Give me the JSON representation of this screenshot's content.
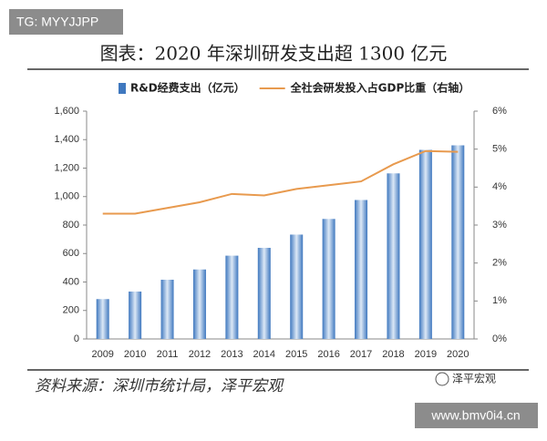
{
  "overlays": {
    "top_watermark": "TG: MYYJJPP",
    "bottom_watermark": "www.bmv0i4.cn",
    "logo": "泽平宏观"
  },
  "chart_data": {
    "type": "bar_line",
    "title": "图表：2020 年深圳研发支出超 1300 亿元",
    "source": "资料来源：深圳市统计局，泽平宏观",
    "categories": [
      "2009",
      "2010",
      "2011",
      "2012",
      "2013",
      "2014",
      "2015",
      "2016",
      "2017",
      "2018",
      "2019",
      "2020"
    ],
    "series": [
      {
        "name": "R&D经费支出（亿元）",
        "type": "bar",
        "color": "#3f78bf",
        "values": [
          280,
          333,
          416,
          488,
          585,
          640,
          733,
          843,
          976,
          1163,
          1328,
          1360
        ]
      },
      {
        "name": "全社会研发投入占GDP比重（右轴）",
        "type": "line",
        "axis": "y2",
        "color": "#e89a4e",
        "values": [
          3.3,
          3.3,
          3.45,
          3.6,
          3.82,
          3.78,
          3.95,
          4.05,
          4.15,
          4.6,
          4.95,
          4.93
        ]
      }
    ],
    "ylim": [
      0,
      1600
    ],
    "yticks": [
      0,
      200,
      400,
      600,
      800,
      {
        "value": 1000,
        "label": "1,000"
      },
      {
        "value": 1200,
        "label": "1,200"
      },
      {
        "value": 1400,
        "label": "1,400"
      },
      {
        "value": 1600,
        "label": "1,600"
      }
    ],
    "y2lim": [
      0,
      6
    ],
    "y2ticks": [
      {
        "value": 0,
        "label": "0%"
      },
      {
        "value": 1,
        "label": "1%"
      },
      {
        "value": 2,
        "label": "2%"
      },
      {
        "value": 3,
        "label": "3%"
      },
      {
        "value": 4,
        "label": "4%"
      },
      {
        "value": 5,
        "label": "5%"
      },
      {
        "value": 6,
        "label": "6%"
      }
    ],
    "grid": false
  }
}
